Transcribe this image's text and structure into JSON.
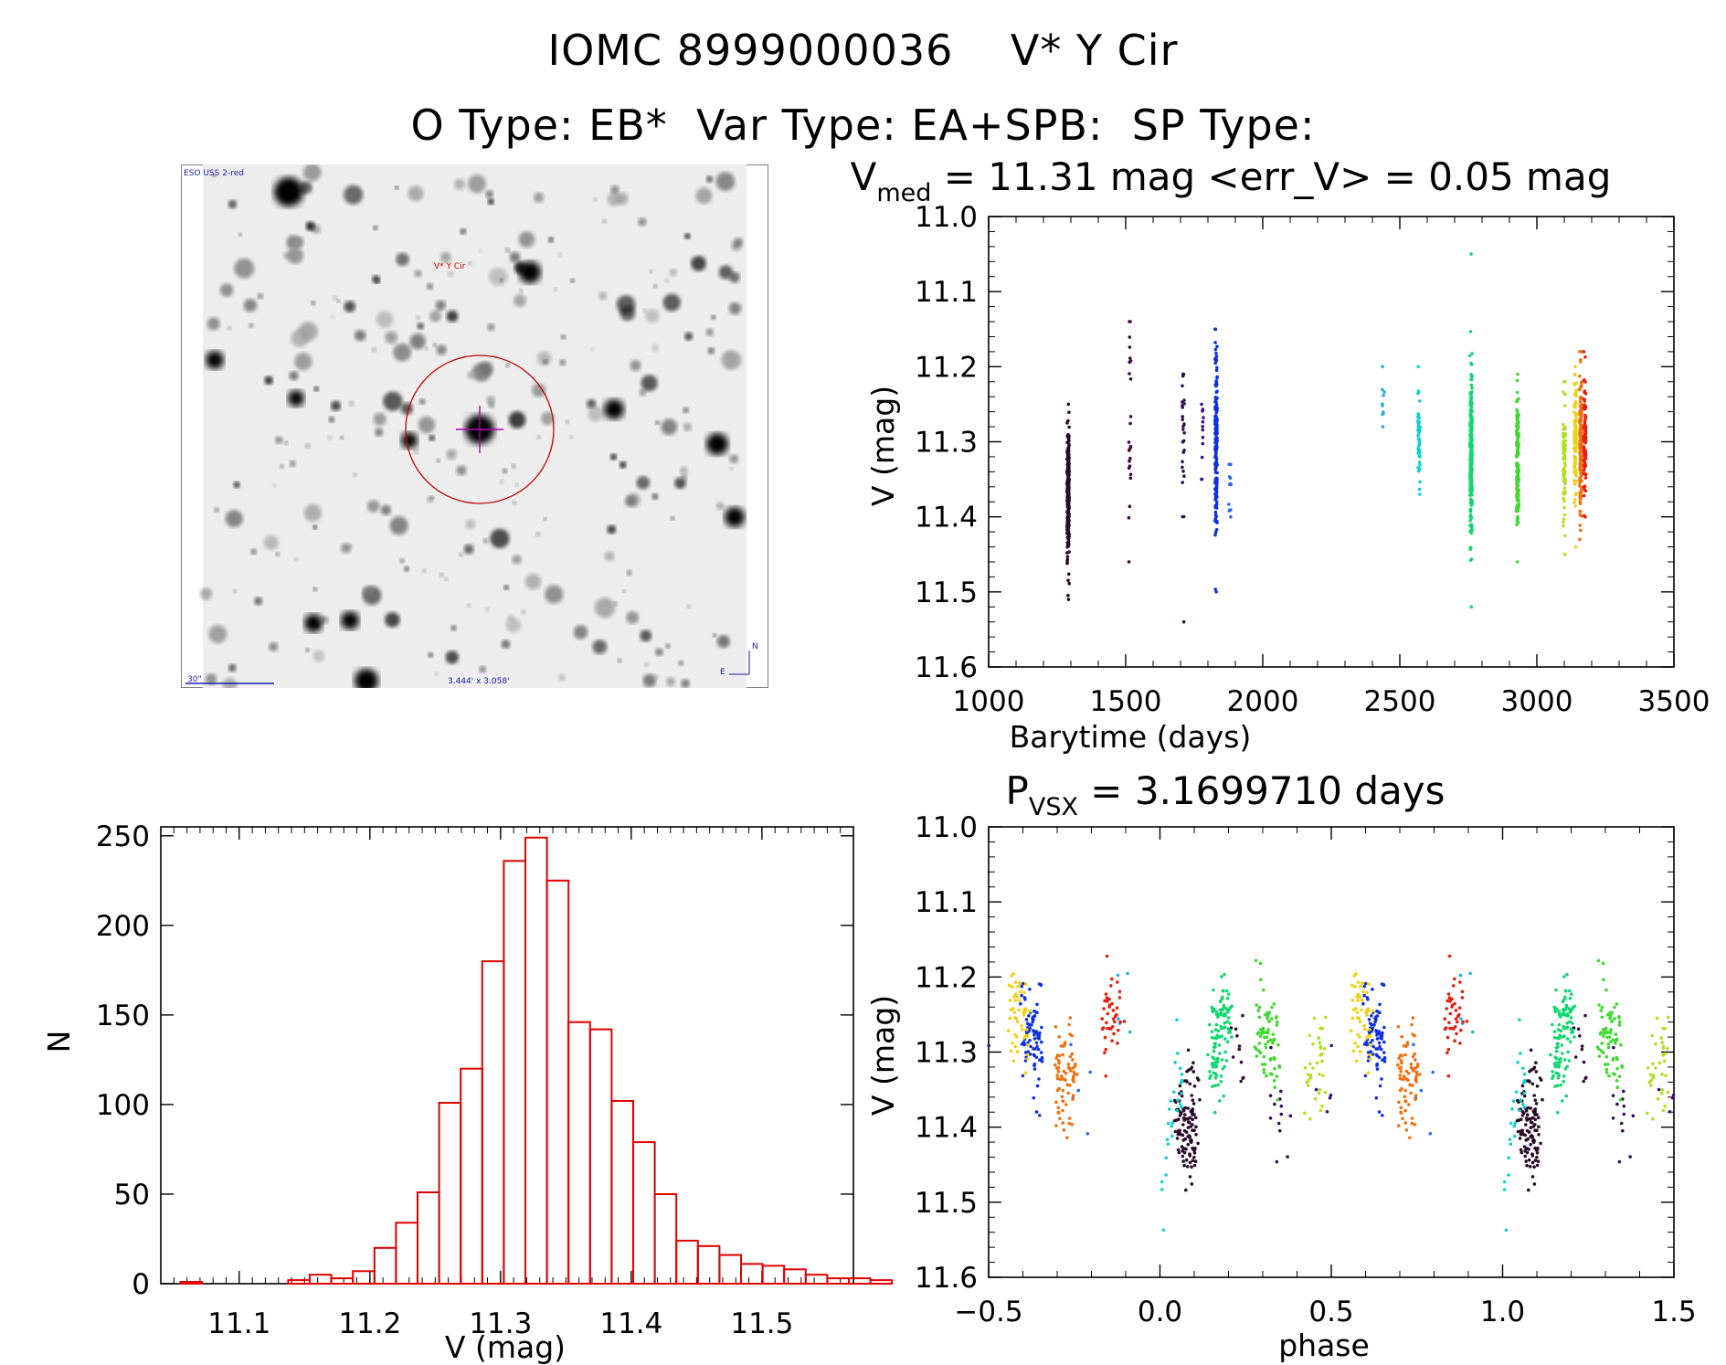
{
  "figure": {
    "title_line1": "IOMC 8999000036    V* Y Cir",
    "title_line2": "O Type: EB*  Var Type: EA+SPB:  SP Type:"
  },
  "finder": {
    "survey_label": "ESO USS 2-red",
    "target_label": "V* Y Cir",
    "scale_label": "30\"",
    "fov_label": "3.444' x 3.058'",
    "north_label": "N",
    "east_label": "E"
  },
  "colors": {
    "histogram": "#e00000",
    "finder_circle": "#c00000",
    "crosshair": "#b000b0",
    "finder_text_blue": "#1a1aa0",
    "finder_text_red": "#c00000"
  },
  "chart_data": [
    {
      "type": "scatter",
      "name": "light_curve",
      "title_main": "V",
      "title_sub": "med",
      "title_rest": " = 11.31 mag <err_V> = 0.05 mag",
      "xlabel": "Barytime (days)",
      "ylabel": "V (mag)",
      "xlim": [
        1000,
        3500
      ],
      "ylim": [
        11.6,
        11.0
      ],
      "xticks": [
        "1000",
        "1500",
        "2000",
        "2500",
        "3000",
        "3500"
      ],
      "yticks": [
        "11.0",
        "11.1",
        "11.2",
        "11.3",
        "11.4",
        "11.5",
        "11.6"
      ],
      "groups": [
        {
          "t": 1290,
          "min": 11.25,
          "max": 11.51,
          "color": "#2a0a2a",
          "center": 11.37,
          "spread": 0.045,
          "n": 260
        },
        {
          "t": 1515,
          "min": 11.14,
          "max": 11.46,
          "color": "#3a0a3a",
          "center": 11.3,
          "spread": 0.07,
          "n": 24
        },
        {
          "t": 1710,
          "min": 11.21,
          "max": 11.54,
          "color": "#3a0a5a",
          "center": 11.3,
          "spread": 0.06,
          "n": 28
        },
        {
          "t": 1780,
          "min": 11.25,
          "max": 11.35,
          "color": "#3a1080",
          "center": 11.3,
          "spread": 0.03,
          "n": 12
        },
        {
          "t": 1830,
          "min": 11.15,
          "max": 11.5,
          "color": "#1030e0",
          "center": 11.3,
          "spread": 0.06,
          "n": 180
        },
        {
          "t": 1880,
          "min": 11.33,
          "max": 11.4,
          "color": "#2a6af0",
          "center": 11.36,
          "spread": 0.02,
          "n": 12
        },
        {
          "t": 2440,
          "min": 11.2,
          "max": 11.28,
          "color": "#20b0e0",
          "center": 11.24,
          "spread": 0.02,
          "n": 10
        },
        {
          "t": 2570,
          "min": 11.2,
          "max": 11.37,
          "color": "#10d0d0",
          "center": 11.29,
          "spread": 0.03,
          "n": 60
        },
        {
          "t": 2760,
          "min": 11.05,
          "max": 11.52,
          "color": "#10d870",
          "center": 11.31,
          "spread": 0.055,
          "n": 230
        },
        {
          "t": 2930,
          "min": 11.21,
          "max": 11.46,
          "color": "#40d830",
          "center": 11.33,
          "spread": 0.045,
          "n": 160
        },
        {
          "t": 3100,
          "min": 11.22,
          "max": 11.45,
          "color": "#b0e020",
          "center": 11.32,
          "spread": 0.045,
          "n": 80
        },
        {
          "t": 3140,
          "min": 11.2,
          "max": 11.44,
          "color": "#f0d010",
          "center": 11.3,
          "spread": 0.04,
          "n": 110
        },
        {
          "t": 3160,
          "min": 11.18,
          "max": 11.43,
          "color": "#f07010",
          "center": 11.3,
          "spread": 0.045,
          "n": 160
        },
        {
          "t": 3175,
          "min": 11.18,
          "max": 11.4,
          "color": "#e02010",
          "center": 11.3,
          "spread": 0.04,
          "n": 90
        }
      ]
    },
    {
      "type": "scatter",
      "name": "phased_light_curve",
      "title_main": "P",
      "title_sub": "VSX",
      "title_rest": " = 3.1699710 days",
      "period_days": 3.169971,
      "xlabel": "phase",
      "ylabel": "V (mag)",
      "xlim": [
        -0.5,
        1.5
      ],
      "ylim": [
        11.6,
        11.0
      ],
      "xticks": [
        "−0.5",
        "0.0",
        "0.5",
        "1.0",
        "1.5"
      ],
      "yticks": [
        "11.0",
        "11.1",
        "11.2",
        "11.3",
        "11.4",
        "11.5",
        "11.6"
      ],
      "primary_eclipse_phase": 0.0,
      "primary_eclipse_depth_mag": 11.54,
      "out_of_eclipse_mag": 11.3
    },
    {
      "type": "bar",
      "name": "histogram",
      "xlabel": "V (mag)",
      "ylabel": "N",
      "xlim": [
        11.04,
        11.57
      ],
      "ylim": [
        0,
        255
      ],
      "xticks": [
        "11.1",
        "11.2",
        "11.3",
        "11.4",
        "11.5"
      ],
      "yticks": [
        "0",
        "50",
        "100",
        "150",
        "200",
        "250"
      ],
      "bin_width": 0.0165,
      "bin_start": 11.055,
      "counts": [
        1,
        0,
        0,
        0,
        0,
        2,
        5,
        3,
        7,
        20,
        34,
        51,
        101,
        120,
        180,
        236,
        249,
        225,
        146,
        142,
        102,
        79,
        50,
        24,
        21,
        16,
        11,
        10,
        8,
        5,
        3,
        3,
        2
      ]
    }
  ]
}
